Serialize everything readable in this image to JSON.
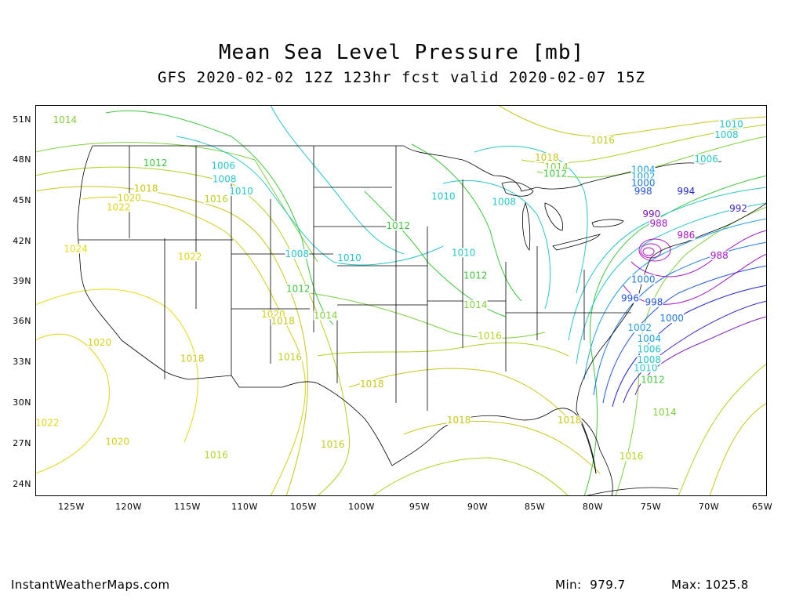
{
  "header": {
    "title": "Mean Sea Level Pressure [mb]",
    "subtitle": "GFS 2020-02-02 12Z 123hr fcst valid 2020-02-07 15Z"
  },
  "axes": {
    "lat_labels": [
      "51N",
      "48N",
      "45N",
      "42N",
      "39N",
      "36N",
      "33N",
      "30N",
      "27N",
      "24N"
    ],
    "lon_labels": [
      "125W",
      "120W",
      "115W",
      "110W",
      "105W",
      "100W",
      "95W",
      "90W",
      "85W",
      "80W",
      "75W",
      "70W",
      "65W"
    ]
  },
  "map": {
    "lon_range": [
      -126.5,
      -65
    ],
    "lat_range": [
      23,
      52.2
    ],
    "contour_labels": [
      {
        "text": "1014",
        "lon": -124,
        "lat": 50.9,
        "color": "#7fd23c"
      },
      {
        "text": "1012",
        "lon": -116.4,
        "lat": 47.7,
        "color": "#3cc83c"
      },
      {
        "text": "1006",
        "lon": -110.7,
        "lat": 47.5,
        "color": "#25c8c8"
      },
      {
        "text": "1008",
        "lon": -110.6,
        "lat": 46.5,
        "color": "#25c8c8"
      },
      {
        "text": "1010",
        "lon": -109.2,
        "lat": 45.6,
        "color": "#25c8c8"
      },
      {
        "text": "1016",
        "lon": -111.3,
        "lat": 45.0,
        "color": "#b4d21e"
      },
      {
        "text": "1018",
        "lon": -117.2,
        "lat": 45.8,
        "color": "#c8c814"
      },
      {
        "text": "1020",
        "lon": -118.6,
        "lat": 45.1,
        "color": "#d2d214"
      },
      {
        "text": "1022",
        "lon": -119.5,
        "lat": 44.4,
        "color": "#e1d70f"
      },
      {
        "text": "1024",
        "lon": -123.1,
        "lat": 41.3,
        "color": "#e6dc0a"
      },
      {
        "text": "1022",
        "lon": -113.5,
        "lat": 40.7,
        "color": "#e1d70f"
      },
      {
        "text": "1008",
        "lon": -104.5,
        "lat": 40.9,
        "color": "#25c8c8"
      },
      {
        "text": "1010",
        "lon": -100.1,
        "lat": 40.6,
        "color": "#25c8c8"
      },
      {
        "text": "1012",
        "lon": -104.4,
        "lat": 38.3,
        "color": "#3cc83c"
      },
      {
        "text": "1020",
        "lon": -106.5,
        "lat": 36.4,
        "color": "#d2d214"
      },
      {
        "text": "1018",
        "lon": -105.7,
        "lat": 35.9,
        "color": "#c8c814"
      },
      {
        "text": "1014",
        "lon": -102.1,
        "lat": 36.3,
        "color": "#7fd23c"
      },
      {
        "text": "1020",
        "lon": -121.1,
        "lat": 34.3,
        "color": "#d2d214"
      },
      {
        "text": "1018",
        "lon": -113.3,
        "lat": 33.1,
        "color": "#c8c814"
      },
      {
        "text": "1016",
        "lon": -105.1,
        "lat": 33.2,
        "color": "#b4d21e"
      },
      {
        "text": "1018",
        "lon": -98.2,
        "lat": 31.2,
        "color": "#c8c814"
      },
      {
        "text": "1022",
        "lon": -125.5,
        "lat": 28.3,
        "color": "#e1d70f"
      },
      {
        "text": "1020",
        "lon": -119.6,
        "lat": 26.9,
        "color": "#d2d214"
      },
      {
        "text": "1016",
        "lon": -111.3,
        "lat": 25.9,
        "color": "#b4d21e"
      },
      {
        "text": "1016",
        "lon": -101.5,
        "lat": 26.7,
        "color": "#b4d21e"
      },
      {
        "text": "1018",
        "lon": -90.9,
        "lat": 28.5,
        "color": "#c8c814"
      },
      {
        "text": "1018",
        "lon": -81.6,
        "lat": 28.5,
        "color": "#c8c814"
      },
      {
        "text": "1016",
        "lon": -76.4,
        "lat": 25.8,
        "color": "#b4d21e"
      },
      {
        "text": "1014",
        "lon": -73.6,
        "lat": 29.1,
        "color": "#7fd23c"
      },
      {
        "text": "1012",
        "lon": -74.6,
        "lat": 31.5,
        "color": "#3cc83c"
      },
      {
        "text": "1010",
        "lon": -75.2,
        "lat": 32.4,
        "color": "#25c8c8"
      },
      {
        "text": "1008",
        "lon": -74.9,
        "lat": 33.0,
        "color": "#25c8c8"
      },
      {
        "text": "1006",
        "lon": -74.9,
        "lat": 33.8,
        "color": "#25c8c8"
      },
      {
        "text": "1004",
        "lon": -74.9,
        "lat": 34.6,
        "color": "#1ea0e6"
      },
      {
        "text": "1002",
        "lon": -75.7,
        "lat": 35.4,
        "color": "#1ea0e6"
      },
      {
        "text": "1000",
        "lon": -73.0,
        "lat": 36.1,
        "color": "#1e78e6"
      },
      {
        "text": "998",
        "lon": -74.5,
        "lat": 37.3,
        "color": "#1e50e6"
      },
      {
        "text": "996",
        "lon": -76.5,
        "lat": 37.6,
        "color": "#1e50e6"
      },
      {
        "text": "1000",
        "lon": -75.4,
        "lat": 39.0,
        "color": "#1e78e6"
      },
      {
        "text": "1010",
        "lon": -92.2,
        "lat": 45.2,
        "color": "#25c8c8"
      },
      {
        "text": "1008",
        "lon": -87.1,
        "lat": 44.8,
        "color": "#25c8c8"
      },
      {
        "text": "1012",
        "lon": -96.0,
        "lat": 43.0,
        "color": "#3cc83c"
      },
      {
        "text": "1010",
        "lon": -90.5,
        "lat": 41.0,
        "color": "#25c8c8"
      },
      {
        "text": "1012",
        "lon": -89.5,
        "lat": 39.3,
        "color": "#3cc83c"
      },
      {
        "text": "1014",
        "lon": -89.5,
        "lat": 37.1,
        "color": "#7fd23c"
      },
      {
        "text": "1016",
        "lon": -88.3,
        "lat": 34.8,
        "color": "#b4d21e"
      },
      {
        "text": "1018",
        "lon": -83.5,
        "lat": 48.1,
        "color": "#c8c814"
      },
      {
        "text": "1016",
        "lon": -78.8,
        "lat": 49.4,
        "color": "#b4d21e"
      },
      {
        "text": "1014",
        "lon": -82.7,
        "lat": 47.4,
        "color": "#7fd23c"
      },
      {
        "text": "1012",
        "lon": -82.8,
        "lat": 46.9,
        "color": "#3cc83c"
      },
      {
        "text": "1010",
        "lon": -68.0,
        "lat": 50.6,
        "color": "#25c8c8"
      },
      {
        "text": "1008",
        "lon": -68.4,
        "lat": 49.8,
        "color": "#25c8c8"
      },
      {
        "text": "1006",
        "lon": -70.1,
        "lat": 48.0,
        "color": "#25c8c8"
      },
      {
        "text": "1004",
        "lon": -75.4,
        "lat": 47.2,
        "color": "#1ea0e6"
      },
      {
        "text": "1002",
        "lon": -75.4,
        "lat": 46.7,
        "color": "#1ea0e6"
      },
      {
        "text": "1000",
        "lon": -75.4,
        "lat": 46.2,
        "color": "#1e78e6"
      },
      {
        "text": "998",
        "lon": -75.4,
        "lat": 45.6,
        "color": "#1e50e6"
      },
      {
        "text": "994",
        "lon": -71.8,
        "lat": 45.6,
        "color": "#1e1ee6"
      },
      {
        "text": "992",
        "lon": -67.4,
        "lat": 44.3,
        "color": "#3c1ed2"
      },
      {
        "text": "990",
        "lon": -74.7,
        "lat": 43.9,
        "color": "#7814c8"
      },
      {
        "text": "988",
        "lon": -74.1,
        "lat": 43.2,
        "color": "#a014c8"
      },
      {
        "text": "986",
        "lon": -71.8,
        "lat": 42.3,
        "color": "#b414c8"
      },
      {
        "text": "988",
        "lon": -69.0,
        "lat": 40.8,
        "color": "#a014c8"
      }
    ]
  },
  "stats": {
    "min_label": "Min:",
    "min_value": "979.7",
    "max_label": "Max:",
    "max_value": "1025.8"
  },
  "footer": {
    "source": "InstantWeatherMaps.com"
  },
  "colors": {
    "outline": "#000000",
    "high_pressure": "#e6dc0a",
    "mid_pressure": "#3cc83c",
    "low_pressure": "#25c8c8",
    "deep_low": "#b414c8"
  }
}
